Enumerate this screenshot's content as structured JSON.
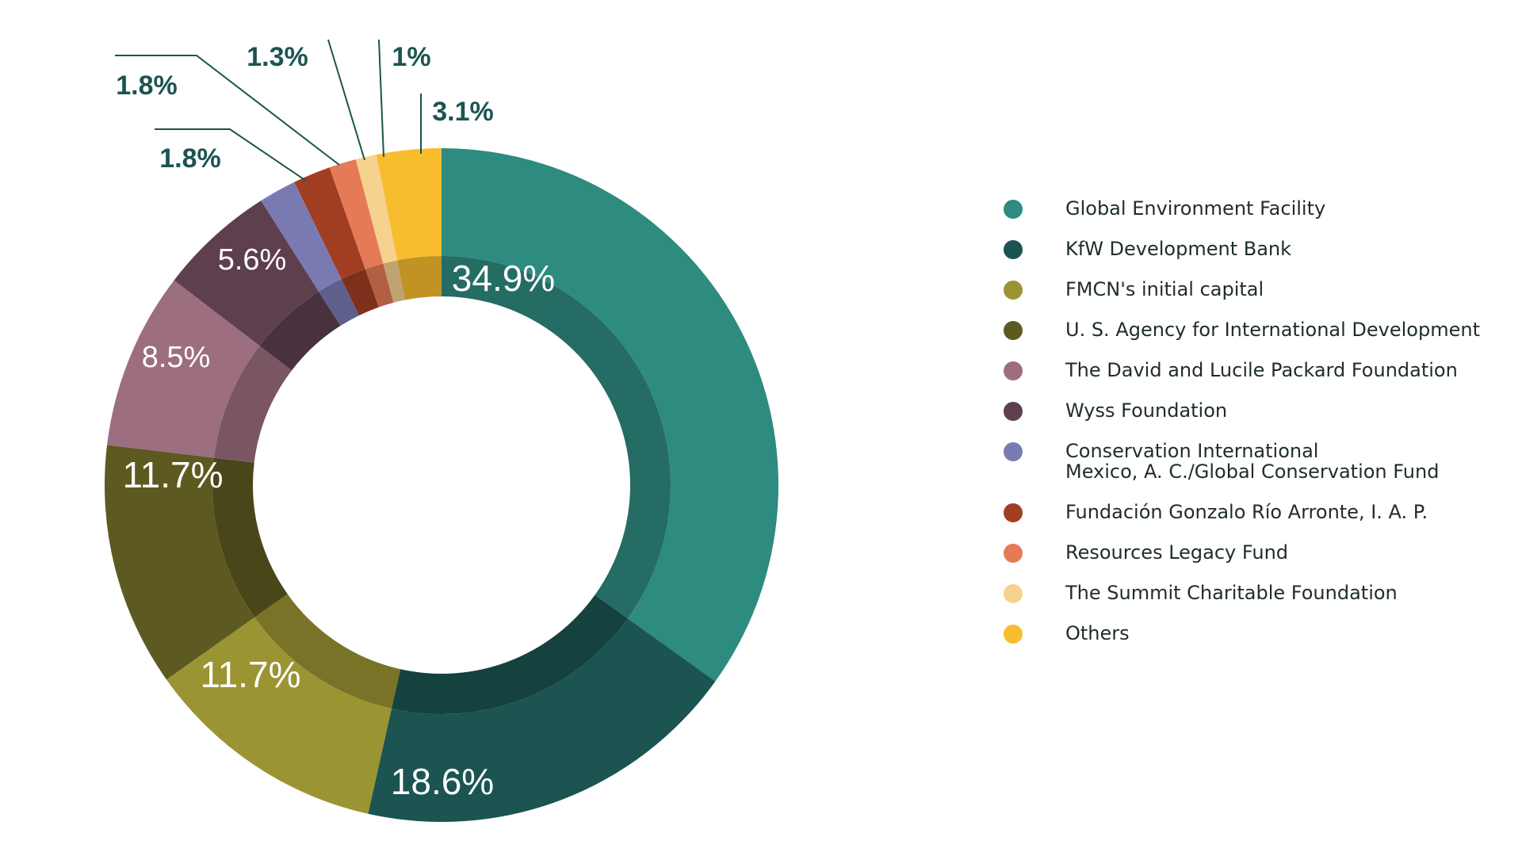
{
  "chart_data": {
    "type": "pie",
    "title": "",
    "slices": [
      {
        "name": "Global Environment Facility",
        "value": 34.9,
        "label": "34.9%",
        "color": "#2e8b80"
      },
      {
        "name": "KfW Development Bank",
        "value": 18.6,
        "label": "18.6%",
        "color": "#1b5450"
      },
      {
        "name": "FMCN's initial capital",
        "value": 11.7,
        "label": "11.7%",
        "color": "#9b9432"
      },
      {
        "name": "U. S. Agency for International Development",
        "value": 11.7,
        "label": "11.7%",
        "color": "#5d5a21"
      },
      {
        "name": "The David and Lucile Packard Foundation",
        "value": 8.5,
        "label": "8.5%",
        "color": "#9c6e80"
      },
      {
        "name": "Wyss Foundation",
        "value": 5.6,
        "label": "5.6%",
        "color": "#5e3f4e"
      },
      {
        "name": "Conservation International\nMexico, A. C./Global Conservation Fund",
        "value": 1.8,
        "label": "1.8%",
        "color": "#7a7ab3"
      },
      {
        "name": "Fundación Gonzalo Río Arronte, I. A. P.",
        "value": 1.8,
        "label": "1.8%",
        "color": "#a13e22"
      },
      {
        "name": "Resources Legacy Fund",
        "value": 1.3,
        "label": "1.3%",
        "color": "#e57a57"
      },
      {
        "name": "The Summit Charitable Foundation",
        "value": 1.0,
        "label": "1%",
        "color": "#f6d28f"
      },
      {
        "name": "Others",
        "value": 3.1,
        "label": "3.1%",
        "color": "#f8bd2f"
      }
    ],
    "legend_position": "right",
    "label_color_inside": "#ffffff",
    "label_color_outside": "#1b5450"
  }
}
